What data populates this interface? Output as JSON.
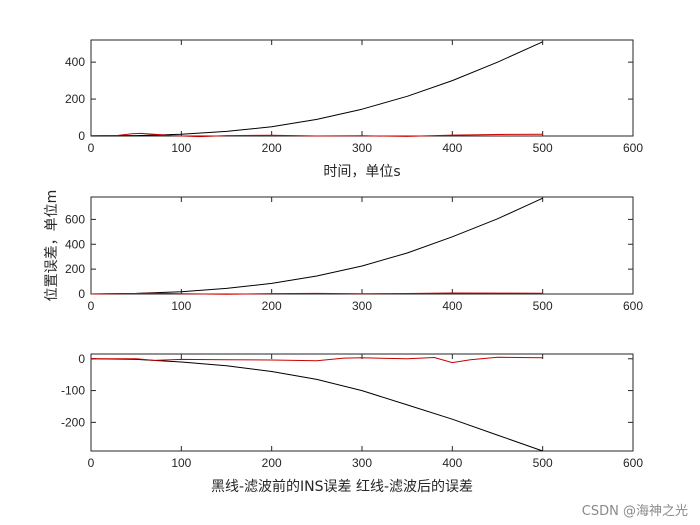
{
  "chart_data": [
    {
      "type": "line",
      "xlim": [
        0,
        600
      ],
      "ylim": [
        0,
        520
      ],
      "xticks": [
        0,
        100,
        200,
        300,
        400,
        500,
        600
      ],
      "yticks": [
        0,
        200,
        400
      ],
      "xlabel": "时间，单位s",
      "ylabel": "",
      "grid": false,
      "series": [
        {
          "color": "#000000",
          "x": [
            0,
            50,
            100,
            150,
            200,
            250,
            300,
            350,
            400,
            450,
            500
          ],
          "y": [
            0,
            2,
            9,
            25,
            50,
            90,
            145,
            215,
            300,
            400,
            510
          ]
        },
        {
          "color": "#cc0000",
          "x": [
            0,
            30,
            45,
            55,
            70,
            90,
            120,
            150,
            200,
            250,
            300,
            350,
            400,
            450,
            500
          ],
          "y": [
            2,
            3,
            12,
            14,
            10,
            2,
            -3,
            2,
            4,
            0,
            1,
            -2,
            5,
            8,
            10
          ]
        }
      ]
    },
    {
      "type": "line",
      "xlim": [
        0,
        600
      ],
      "ylim": [
        0,
        780
      ],
      "xticks": [
        0,
        100,
        200,
        300,
        400,
        500,
        600
      ],
      "yticks": [
        0,
        200,
        400,
        600
      ],
      "xlabel": "",
      "ylabel": "位置误差，单位m",
      "grid": false,
      "series": [
        {
          "color": "#000000",
          "x": [
            0,
            50,
            100,
            150,
            200,
            250,
            300,
            350,
            400,
            450,
            500
          ],
          "y": [
            0,
            5,
            18,
            45,
            85,
            145,
            225,
            330,
            460,
            605,
            770
          ]
        },
        {
          "color": "#cc0000",
          "x": [
            0,
            40,
            70,
            100,
            150,
            200,
            250,
            300,
            350,
            400,
            450,
            500
          ],
          "y": [
            0,
            3,
            6,
            2,
            -2,
            3,
            5,
            2,
            4,
            8,
            7,
            6
          ]
        }
      ]
    },
    {
      "type": "line",
      "xlim": [
        0,
        600
      ],
      "ylim": [
        -290,
        15
      ],
      "xticks": [
        0,
        100,
        200,
        300,
        400,
        500,
        600
      ],
      "yticks": [
        -200,
        -100,
        0
      ],
      "xlabel": "黑线-滤波前的INS误差   红线-滤波后的误差",
      "ylabel": "",
      "grid": false,
      "series": [
        {
          "color": "#000000",
          "x": [
            0,
            50,
            100,
            150,
            200,
            250,
            300,
            350,
            400,
            450,
            500
          ],
          "y": [
            0,
            -2,
            -10,
            -22,
            -40,
            -65,
            -100,
            -145,
            -190,
            -240,
            -290
          ]
        },
        {
          "color": "#cc0000",
          "x": [
            0,
            50,
            70,
            100,
            150,
            200,
            250,
            280,
            300,
            350,
            380,
            400,
            420,
            450,
            500
          ],
          "y": [
            0,
            0,
            -5,
            -2,
            -3,
            -4,
            -6,
            2,
            3,
            0,
            4,
            -12,
            -3,
            5,
            3
          ]
        }
      ]
    }
  ],
  "watermark": "CSDN @海神之光"
}
